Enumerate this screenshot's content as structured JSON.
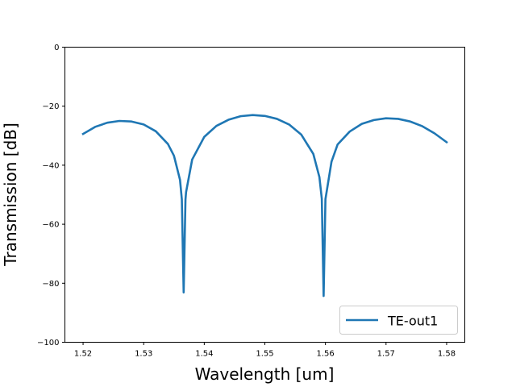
{
  "chart_data": {
    "type": "line",
    "title": "",
    "xlabel": "Wavelength [um]",
    "ylabel": "Transmission [dB]",
    "xlim": [
      1.517,
      1.583
    ],
    "ylim": [
      -100,
      0
    ],
    "xticks": [
      1.52,
      1.53,
      1.54,
      1.55,
      1.56,
      1.57,
      1.58
    ],
    "xtick_labels": [
      "1.52",
      "1.53",
      "1.54",
      "1.55",
      "1.56",
      "1.57",
      "1.58"
    ],
    "yticks": [
      0,
      -20,
      -40,
      -60,
      -80,
      -100
    ],
    "ytick_labels": [
      "0",
      "−20",
      "−40",
      "−60",
      "−80",
      "−100"
    ],
    "grid": false,
    "legend_position": "lower-right",
    "series": [
      {
        "name": "TE-out1",
        "color": "#1f77b4",
        "x": [
          1.52,
          1.522,
          1.524,
          1.526,
          1.528,
          1.53,
          1.532,
          1.534,
          1.535,
          1.536,
          1.5363,
          1.5366,
          1.5369,
          1.537,
          1.538,
          1.54,
          1.542,
          1.544,
          1.546,
          1.548,
          1.55,
          1.552,
          1.554,
          1.556,
          1.558,
          1.559,
          1.5594,
          1.5597,
          1.56,
          1.561,
          1.562,
          1.564,
          1.566,
          1.568,
          1.57,
          1.572,
          1.574,
          1.576,
          1.578,
          1.58
        ],
        "y": [
          -29.4,
          -27.0,
          -25.6,
          -25.0,
          -25.2,
          -26.2,
          -28.5,
          -32.8,
          -36.8,
          -45.0,
          -51.6,
          -83.1,
          -51.6,
          -49.1,
          -38.1,
          -30.4,
          -26.7,
          -24.6,
          -23.4,
          -23.0,
          -23.3,
          -24.3,
          -26.2,
          -29.6,
          -36.2,
          -44.0,
          -51.4,
          -84.3,
          -51.5,
          -38.8,
          -33.0,
          -28.6,
          -26.0,
          -24.7,
          -24.1,
          -24.3,
          -25.2,
          -26.8,
          -29.2,
          -32.2
        ]
      }
    ]
  }
}
